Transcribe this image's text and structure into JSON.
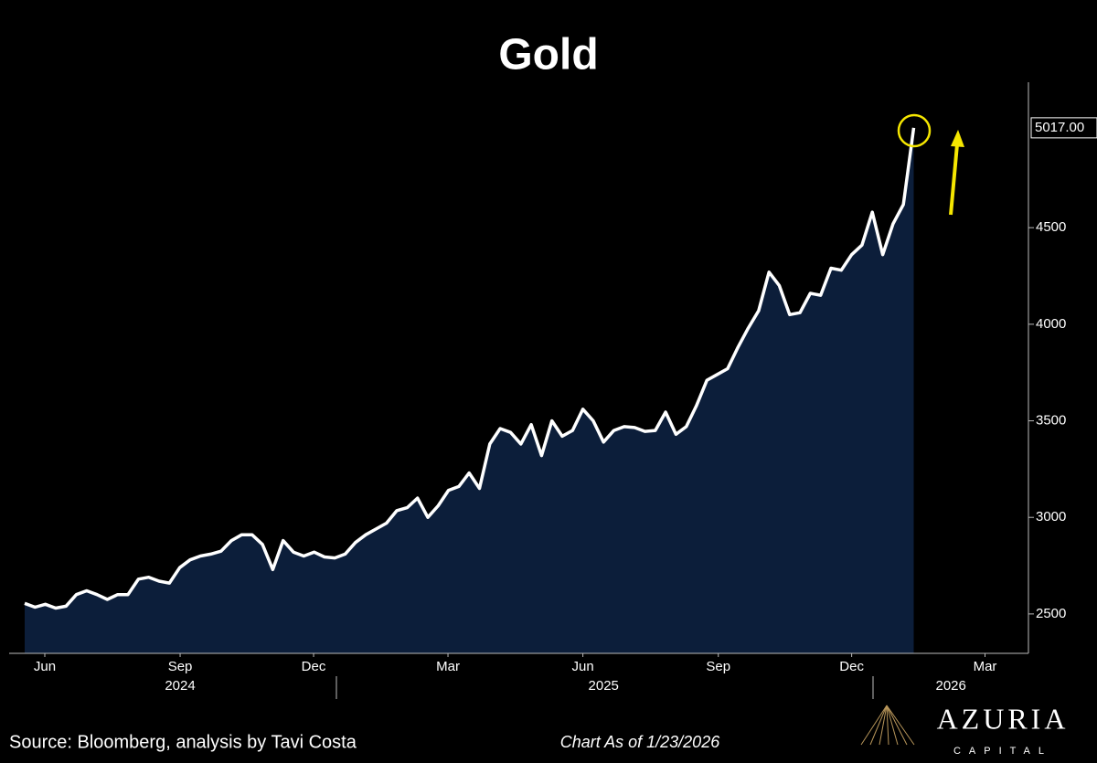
{
  "chart_data": {
    "type": "area",
    "title": "Gold",
    "values": [
      2555,
      2535,
      2550,
      2530,
      2540,
      2600,
      2620,
      2600,
      2575,
      2600,
      2600,
      2680,
      2690,
      2670,
      2660,
      2740,
      2780,
      2800,
      2810,
      2825,
      2880,
      2910,
      2910,
      2860,
      2730,
      2880,
      2820,
      2800,
      2820,
      2795,
      2790,
      2810,
      2870,
      2910,
      2940,
      2970,
      3035,
      3050,
      3100,
      3000,
      3060,
      3140,
      3160,
      3230,
      3150,
      3380,
      3460,
      3440,
      3380,
      3480,
      3320,
      3500,
      3420,
      3450,
      3560,
      3500,
      3390,
      3450,
      3470,
      3465,
      3445,
      3450,
      3545,
      3430,
      3470,
      3580,
      3710,
      3740,
      3770,
      3880,
      3980,
      4070,
      4270,
      4200,
      4050,
      4060,
      4160,
      4150,
      4290,
      4280,
      4360,
      4410,
      4580,
      4360,
      4520,
      4620,
      5017
    ],
    "value_labels": [
      null,
      null,
      null,
      null,
      null,
      null,
      null,
      null,
      null,
      null,
      null,
      null,
      null,
      null,
      null,
      null,
      null,
      null,
      null,
      null,
      null,
      null,
      null,
      null,
      null,
      null,
      null,
      null,
      null,
      null,
      null,
      null,
      null,
      null,
      null,
      null,
      null,
      null,
      null,
      null,
      null,
      null,
      null,
      null,
      null,
      null,
      null,
      null,
      null,
      null,
      null,
      null,
      null,
      null,
      null,
      null,
      null,
      null,
      null,
      null,
      null,
      null,
      null,
      null,
      null,
      null,
      null,
      null,
      null,
      null,
      null,
      null,
      null,
      null,
      null,
      null,
      null,
      null,
      null,
      null,
      null,
      null,
      null,
      null,
      null,
      null,
      "5017.00"
    ],
    "color": "#ffffff",
    "fill_color": "#0c1e3a",
    "ylim": [
      2296,
      5253
    ],
    "yticks": [
      2500,
      3000,
      3500,
      4000,
      4500
    ],
    "xlim": [
      -1.5,
      97.1
    ],
    "xticks": [
      {
        "value": 1.95,
        "label": "Jun"
      },
      {
        "value": 15.04,
        "label": "Sep"
      },
      {
        "value": 27.95,
        "label": "Dec"
      },
      {
        "value": 40.95,
        "label": "Mar"
      },
      {
        "value": 54.0,
        "label": "Jun"
      },
      {
        "value": 67.1,
        "label": "Sep"
      },
      {
        "value": 80.0,
        "label": "Dec"
      },
      {
        "value": 92.9,
        "label": "Mar"
      }
    ],
    "year_ticks": [
      {
        "value": 15.04,
        "label": "2024"
      },
      {
        "value": 56.0,
        "label": "2025"
      },
      {
        "value": 89.6,
        "label": "2026"
      }
    ]
  },
  "footer": {
    "source": "Source: Bloomberg, analysis by Tavi Costa",
    "as_of": "Chart As of 1/23/2026"
  },
  "logo": {
    "name": "AZURIA",
    "tagline": "CAPITAL"
  }
}
